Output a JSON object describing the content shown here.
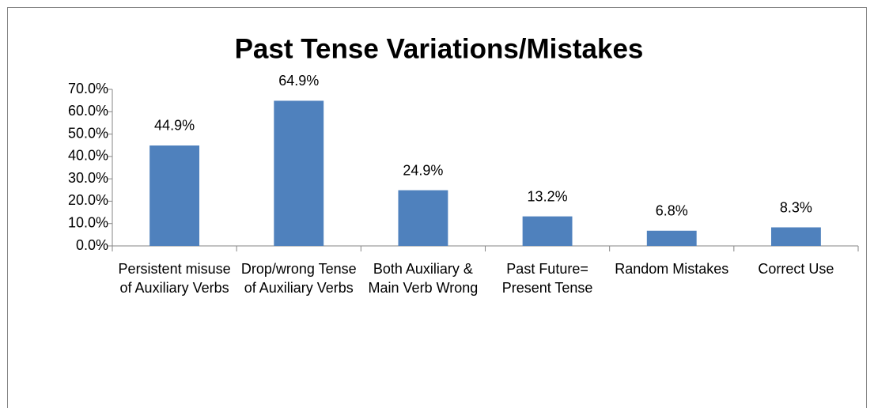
{
  "chart_data": {
    "type": "bar",
    "title": "Past Tense Variations/Mistakes",
    "categories": [
      "Persistent misuse of Auxiliary Verbs",
      "Drop/wrong Tense of Auxiliary Verbs",
      "Both Auxiliary & Main Verb Wrong",
      "Past Future= Present Tense",
      "Random Mistakes",
      "Correct Use"
    ],
    "values": [
      44.9,
      64.9,
      24.9,
      13.2,
      6.8,
      8.3
    ],
    "value_labels": [
      "44.9%",
      "64.9%",
      "24.9%",
      "13.2%",
      "6.8%",
      "8.3%"
    ],
    "color": "#4f81bd",
    "ylim": [
      0,
      70
    ],
    "yticks": [
      {
        "value": 0,
        "label": "0.0%"
      },
      {
        "value": 10,
        "label": "10.0%"
      },
      {
        "value": 20,
        "label": "20.0%"
      },
      {
        "value": 30,
        "label": "30.0%"
      },
      {
        "value": 40,
        "label": "40.0%"
      },
      {
        "value": 50,
        "label": "50.0%"
      },
      {
        "value": 60,
        "label": "60.0%"
      },
      {
        "value": 70,
        "label": "70.0%"
      }
    ],
    "grid": false
  }
}
